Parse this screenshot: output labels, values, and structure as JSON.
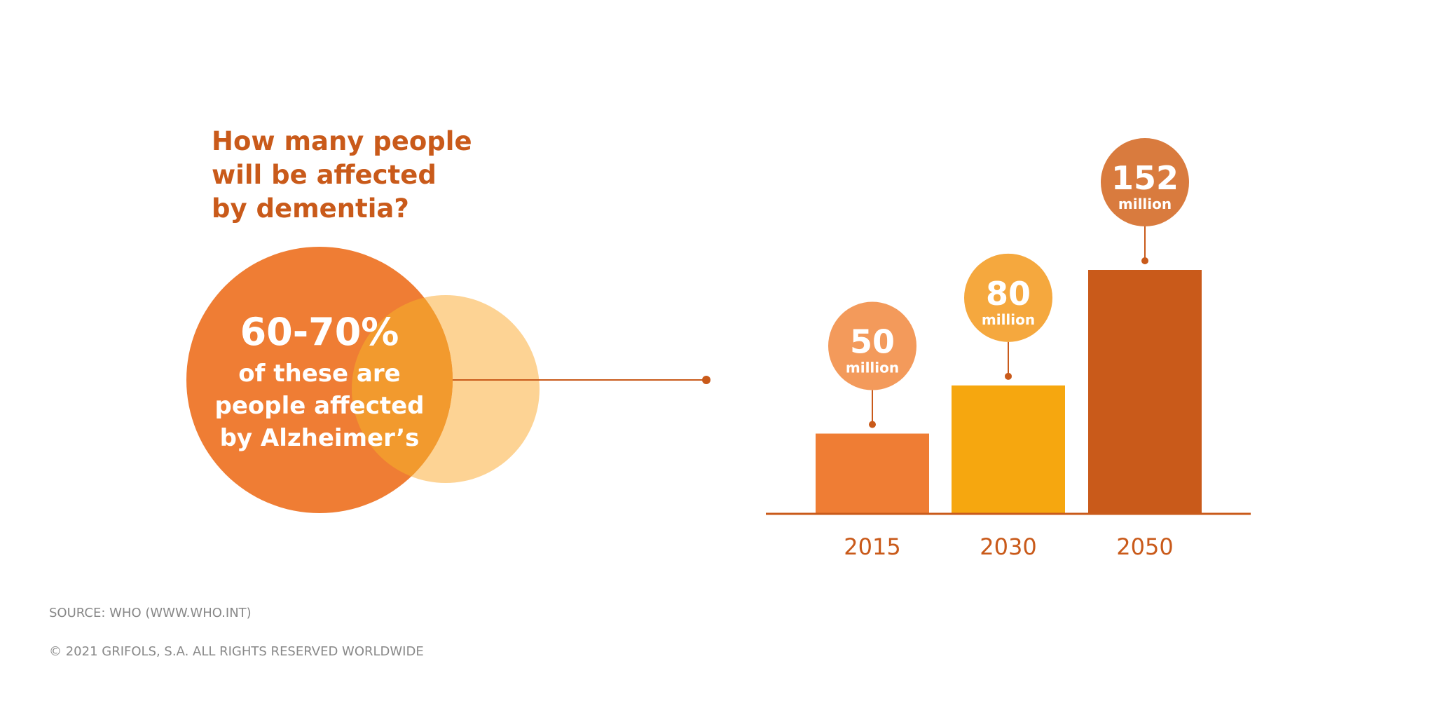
{
  "question": {
    "lines": [
      "How many people",
      "will be affected",
      "by dementia?"
    ]
  },
  "venn": {
    "percentage": "60-70%",
    "description_lines": [
      "of these are",
      "people affected",
      "by Alzheimer’s"
    ]
  },
  "chart_data": {
    "type": "bar",
    "categories": [
      "2015",
      "2030",
      "2050"
    ],
    "values": [
      50,
      80,
      152
    ],
    "value_labels": [
      "50",
      "80",
      "152"
    ],
    "unit_label": "million",
    "title": "",
    "xlabel": "",
    "ylabel": "",
    "grid": false,
    "colors": {
      "bars": [
        "#ef7d34",
        "#f6a70f",
        "#c95a1a"
      ],
      "bubbles": [
        "#f39a5b",
        "#f5a83e",
        "#d97b3e"
      ],
      "axis": "#c95a1a",
      "category_text": "#c95a1a"
    }
  },
  "footer": {
    "source": "SOURCE: WHO (WWW.WHO.INT)",
    "copyright": "© 2021 GRIFOLS, S.A. ALL RIGHTS RESERVED WORLDWIDE"
  },
  "colors": {
    "heading": "#c95a1a",
    "venn_main": "#ef7d34",
    "venn_light": "#fdd394",
    "venn_overlap": "#f29a2e",
    "footer_text": "#888888"
  }
}
